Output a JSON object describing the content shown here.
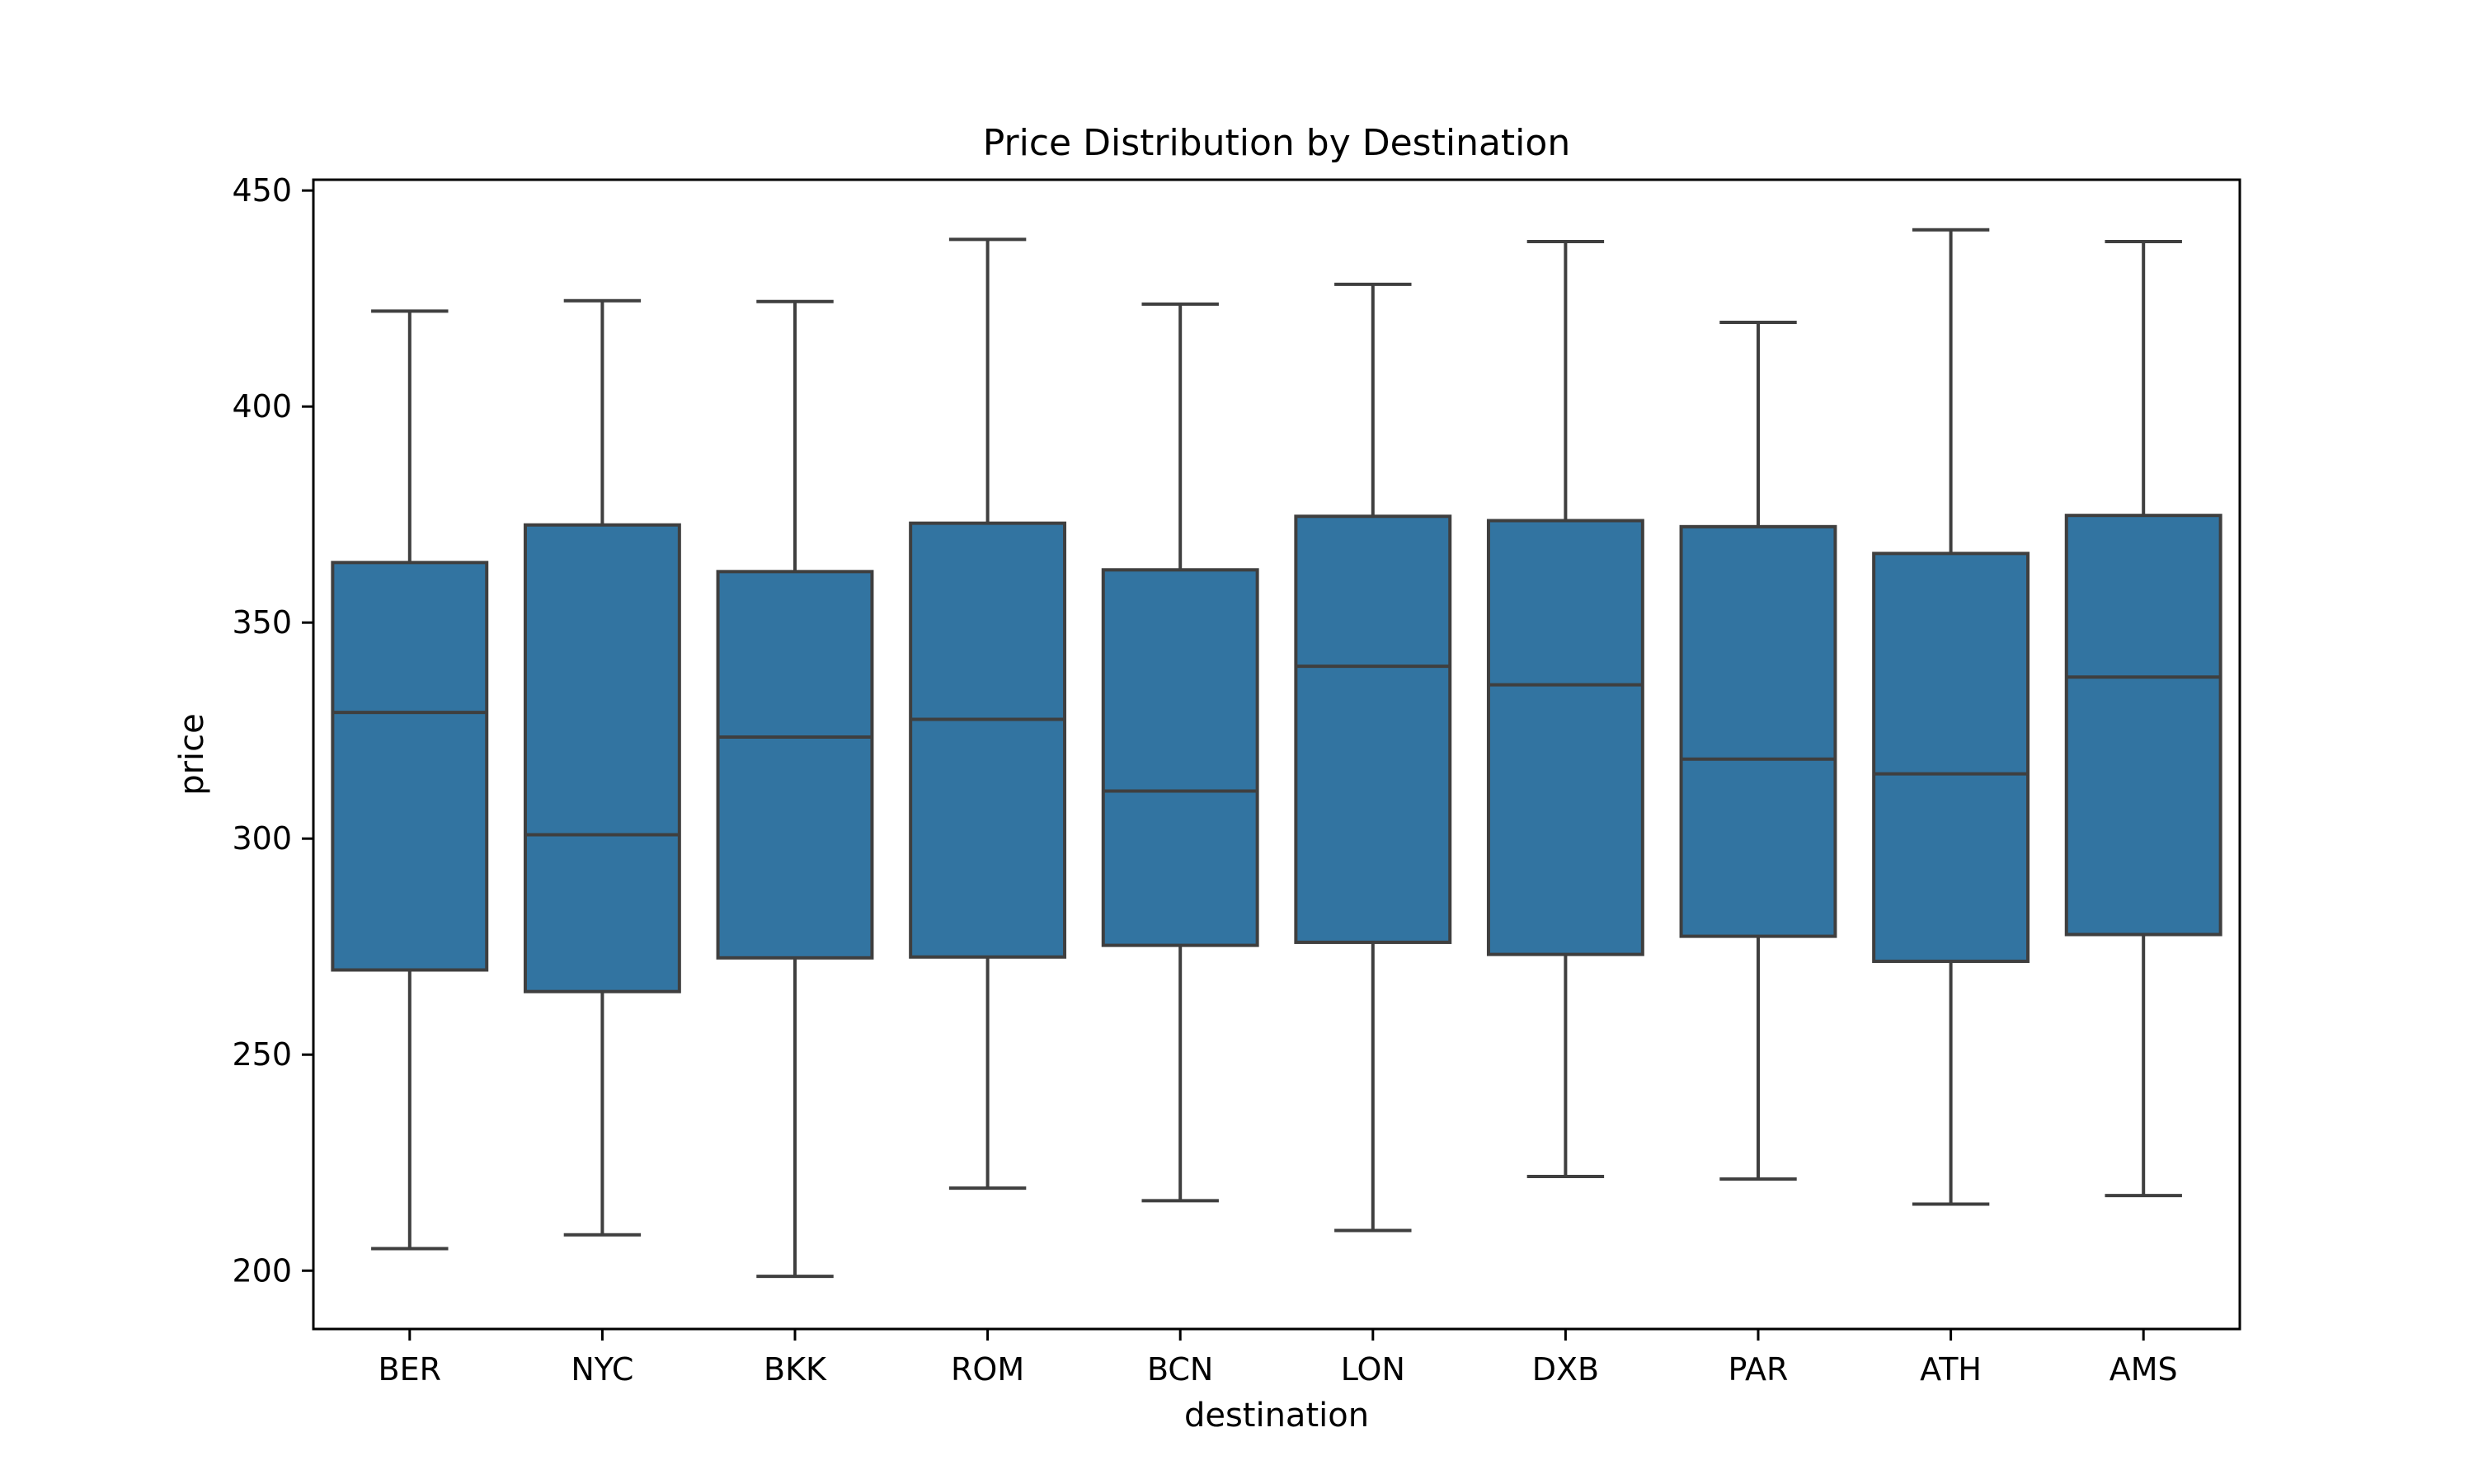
{
  "chart_data": {
    "type": "box",
    "title": "Price Distribution by Destination",
    "xlabel": "destination",
    "ylabel": "price",
    "ylim": [
      186.5,
      452.5
    ],
    "yticks": [
      200,
      250,
      300,
      350,
      400,
      450
    ],
    "grid": false,
    "legend": "none",
    "color": "#3274a1",
    "edge_color": "#3f3f3f",
    "categories": [
      "BER",
      "NYC",
      "BKK",
      "ROM",
      "BCN",
      "LON",
      "DXB",
      "PAR",
      "ATH",
      "AMS"
    ],
    "boxes": [
      {
        "category": "BER",
        "whisker_low": 205.1,
        "q1": 269.6,
        "median": 329.2,
        "q3": 363.9,
        "whisker_high": 422.1
      },
      {
        "category": "NYC",
        "whisker_low": 208.3,
        "q1": 264.6,
        "median": 300.9,
        "q3": 372.6,
        "whisker_high": 424.5
      },
      {
        "category": "BKK",
        "whisker_low": 198.7,
        "q1": 272.4,
        "median": 323.5,
        "q3": 361.8,
        "whisker_high": 424.3
      },
      {
        "category": "ROM",
        "whisker_low": 219.1,
        "q1": 272.6,
        "median": 327.6,
        "q3": 373.0,
        "whisker_high": 438.7
      },
      {
        "category": "BCN",
        "whisker_low": 216.2,
        "q1": 275.3,
        "median": 311.0,
        "q3": 362.2,
        "whisker_high": 423.7
      },
      {
        "category": "LON",
        "whisker_low": 209.3,
        "q1": 276.0,
        "median": 339.9,
        "q3": 374.6,
        "whisker_high": 428.3
      },
      {
        "category": "DXB",
        "whisker_low": 221.8,
        "q1": 273.2,
        "median": 335.6,
        "q3": 373.6,
        "whisker_high": 438.2
      },
      {
        "category": "PAR",
        "whisker_low": 221.2,
        "q1": 277.4,
        "median": 318.4,
        "q3": 372.2,
        "whisker_high": 419.5
      },
      {
        "category": "ATH",
        "whisker_low": 215.4,
        "q1": 271.6,
        "median": 315.0,
        "q3": 366.0,
        "whisker_high": 440.9
      },
      {
        "category": "AMS",
        "whisker_low": 217.4,
        "q1": 277.8,
        "median": 337.4,
        "q3": 374.8,
        "whisker_high": 438.2
      }
    ]
  }
}
